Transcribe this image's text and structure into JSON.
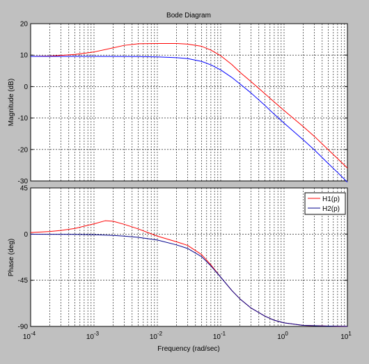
{
  "chart_data": [
    {
      "type": "line",
      "title": "Bode Diagram",
      "ylabel": "Magnitude (dB)",
      "xlabel": "",
      "x_scale": "log",
      "xlim": [
        0.0001,
        10
      ],
      "ylim": [
        -30,
        20
      ],
      "yticks": [
        "20",
        "10",
        "0",
        "-10",
        "-20",
        "-30"
      ],
      "grid": true,
      "series": [
        {
          "name": "H1(p)",
          "color": "#ff0000",
          "points": [
            [
              0.0001,
              9.6
            ],
            [
              0.0002,
              9.7
            ],
            [
              0.0003,
              9.9
            ],
            [
              0.0005,
              10.2
            ],
            [
              0.001,
              11.0
            ],
            [
              0.002,
              12.3
            ],
            [
              0.003,
              13.1
            ],
            [
              0.005,
              13.6
            ],
            [
              0.01,
              13.7
            ],
            [
              0.02,
              13.7
            ],
            [
              0.03,
              13.5
            ],
            [
              0.05,
              12.8
            ],
            [
              0.07,
              11.6
            ],
            [
              0.1,
              9.8
            ],
            [
              0.15,
              7.0
            ],
            [
              0.2,
              4.6
            ],
            [
              0.3,
              1.6
            ],
            [
              0.5,
              -2.3
            ],
            [
              0.7,
              -4.9
            ],
            [
              1,
              -7.6
            ],
            [
              2,
              -12.7
            ],
            [
              3,
              -15.8
            ],
            [
              5,
              -20.1
            ],
            [
              7,
              -22.9
            ],
            [
              10,
              -25.9
            ]
          ]
        },
        {
          "name": "H2(p)",
          "color": "#0000ff",
          "points": [
            [
              0.0001,
              9.6
            ],
            [
              0.001,
              9.6
            ],
            [
              0.005,
              9.55
            ],
            [
              0.01,
              9.45
            ],
            [
              0.02,
              9.2
            ],
            [
              0.03,
              8.9
            ],
            [
              0.05,
              8.0
            ],
            [
              0.07,
              6.9
            ],
            [
              0.1,
              5.3
            ],
            [
              0.15,
              2.9
            ],
            [
              0.2,
              0.9
            ],
            [
              0.3,
              -2.0
            ],
            [
              0.5,
              -6.0
            ],
            [
              0.7,
              -8.8
            ],
            [
              1,
              -11.6
            ],
            [
              2,
              -16.9
            ],
            [
              3,
              -20.1
            ],
            [
              5,
              -24.5
            ],
            [
              7,
              -27.3
            ],
            [
              10,
              -30.4
            ]
          ]
        }
      ]
    },
    {
      "type": "line",
      "title": "",
      "ylabel": "Phase (deg)",
      "xlabel": "Frequency  (rad/sec)",
      "x_scale": "log",
      "xlim": [
        0.0001,
        10
      ],
      "ylim": [
        -90,
        45
      ],
      "yticks": [
        "45",
        "0",
        "-45",
        "-90"
      ],
      "xticks": [
        {
          "base": "10",
          "exp": "-4"
        },
        {
          "base": "10",
          "exp": "-3"
        },
        {
          "base": "10",
          "exp": "-2"
        },
        {
          "base": "10",
          "exp": "-1"
        },
        {
          "base": "10",
          "exp": "0"
        },
        {
          "base": "10",
          "exp": "1"
        }
      ],
      "grid": true,
      "legend": {
        "placement": "top-right",
        "entries": [
          "H1(p)",
          "H2(p)"
        ]
      },
      "series": [
        {
          "name": "H1(p)",
          "color": "#ff0000",
          "points": [
            [
              0.0001,
              1.5
            ],
            [
              0.0002,
              2.5
            ],
            [
              0.0003,
              3.5
            ],
            [
              0.0005,
              5.5
            ],
            [
              0.001,
              10
            ],
            [
              0.0015,
              13
            ],
            [
              0.002,
              12.5
            ],
            [
              0.003,
              9.5
            ],
            [
              0.005,
              5
            ],
            [
              0.01,
              -2
            ],
            [
              0.02,
              -7.5
            ],
            [
              0.03,
              -11
            ],
            [
              0.05,
              -20
            ],
            [
              0.07,
              -30
            ],
            [
              0.1,
              -42
            ],
            [
              0.15,
              -55
            ],
            [
              0.2,
              -63
            ],
            [
              0.3,
              -72
            ],
            [
              0.5,
              -80
            ],
            [
              0.7,
              -84
            ],
            [
              1,
              -86.5
            ],
            [
              2,
              -89
            ],
            [
              5,
              -89.7
            ],
            [
              10,
              -89.9
            ]
          ]
        },
        {
          "name": "H2(p)",
          "color": "#00008b",
          "points": [
            [
              0.0001,
              -0.1
            ],
            [
              0.0005,
              -0.3
            ],
            [
              0.001,
              -0.6
            ],
            [
              0.002,
              -1.3
            ],
            [
              0.003,
              -2
            ],
            [
              0.005,
              -3.2
            ],
            [
              0.01,
              -5.8
            ],
            [
              0.02,
              -10.5
            ],
            [
              0.03,
              -14
            ],
            [
              0.05,
              -22
            ],
            [
              0.07,
              -31
            ],
            [
              0.1,
              -42
            ],
            [
              0.15,
              -55
            ],
            [
              0.2,
              -63
            ],
            [
              0.3,
              -72
            ],
            [
              0.5,
              -80
            ],
            [
              0.7,
              -84
            ],
            [
              1,
              -86.5
            ],
            [
              2,
              -89
            ],
            [
              5,
              -89.7
            ],
            [
              10,
              -89.9
            ]
          ]
        }
      ]
    }
  ]
}
